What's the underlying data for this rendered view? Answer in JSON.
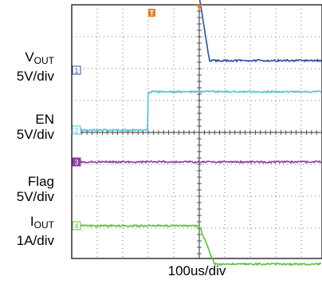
{
  "chart_data": {
    "type": "line",
    "title": "",
    "xlabel": "100us/div",
    "x_divisions": 10,
    "y_divisions": 8,
    "grid": true,
    "channels": [
      {
        "name": "VOUT",
        "label_main": "V",
        "label_sub": "OUT",
        "scale": "5V/div",
        "marker": "1",
        "color": "#2a4fa8",
        "high_level_div": 2.3,
        "low_level_div": 0.3,
        "transition_start_us": 0,
        "transition_end_us": 40
      },
      {
        "name": "EN",
        "label_main": "EN",
        "label_sub": "",
        "scale": "5V/div",
        "marker": "2",
        "color": "#4cc6dc",
        "low_level_div": 0,
        "high_level_div": 1.2,
        "step_time_us": -200
      },
      {
        "name": "Flag",
        "label_main": "Flag",
        "label_sub": "",
        "scale": "5V/div",
        "marker": "3",
        "color": "#8e3aa6",
        "level_div": 0
      },
      {
        "name": "IOUT",
        "label_main": "I",
        "label_sub": "OUT",
        "scale": "1A/div",
        "marker": "4",
        "color": "#5cc43a",
        "high_level_div": 0,
        "low_level_div": -1.2,
        "transition_start_us": 0,
        "transition_end_us": 60
      }
    ],
    "trigger_marker": "T"
  }
}
